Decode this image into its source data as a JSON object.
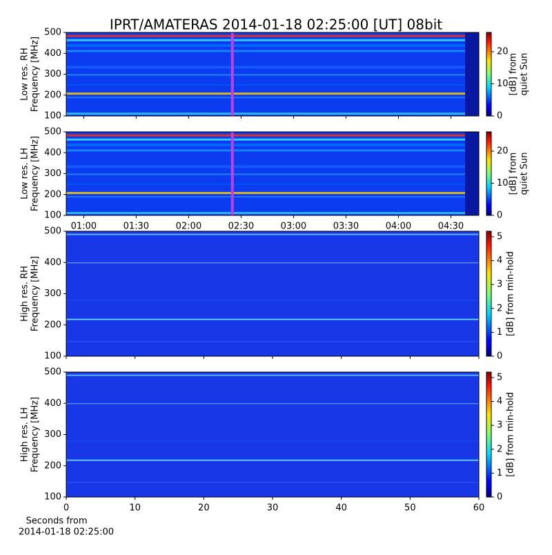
{
  "title": "IPRT/AMATERAS 2014-01-18 02:25:00 [UT]   08bit",
  "chart_data": [
    {
      "type": "heatmap",
      "ylabel": [
        "Low res. RH",
        "Frequency [MHz]"
      ],
      "ylim": [
        100,
        500
      ],
      "yticks": [
        100,
        200,
        300,
        400,
        500
      ],
      "xlim": [
        50,
        286
      ],
      "xticks": [
        {
          "value": 60,
          "label": "01:00"
        },
        {
          "value": 90,
          "label": "01:30"
        },
        {
          "value": 120,
          "label": "02:00"
        },
        {
          "value": 150,
          "label": "02:30"
        },
        {
          "value": 180,
          "label": "03:00"
        },
        {
          "value": 210,
          "label": "03:30"
        },
        {
          "value": 240,
          "label": "04:00"
        },
        {
          "value": 270,
          "label": "04:30"
        }
      ],
      "show_xtick_labels": false,
      "marker_x": 145,
      "marker_color": "#c040e0",
      "colorbar_label": [
        "[dB] from",
        "quiet Sun"
      ],
      "clim": [
        0,
        26
      ],
      "cticks": [
        0,
        10,
        20
      ]
    },
    {
      "type": "heatmap",
      "ylabel": [
        "Low res. LH",
        "Frequency [MHz]"
      ],
      "ylim": [
        100,
        500
      ],
      "yticks": [
        100,
        200,
        300,
        400,
        500
      ],
      "xlim": [
        50,
        286
      ],
      "xticks": [
        {
          "value": 60,
          "label": "01:00"
        },
        {
          "value": 90,
          "label": "01:30"
        },
        {
          "value": 120,
          "label": "02:00"
        },
        {
          "value": 150,
          "label": "02:30"
        },
        {
          "value": 180,
          "label": "03:00"
        },
        {
          "value": 210,
          "label": "03:30"
        },
        {
          "value": 240,
          "label": "04:00"
        },
        {
          "value": 270,
          "label": "04:30"
        }
      ],
      "show_xtick_labels": true,
      "marker_x": 145,
      "marker_color": "#c040e0",
      "colorbar_label": [
        "[dB] from",
        "quiet Sun"
      ],
      "clim": [
        0,
        26
      ],
      "cticks": [
        0,
        10,
        20
      ]
    },
    {
      "type": "heatmap",
      "ylabel": [
        "High res. RH",
        "Frequency [MHz]"
      ],
      "ylim": [
        100,
        500
      ],
      "yticks": [
        100,
        200,
        300,
        400,
        500
      ],
      "xlim": [
        0,
        60
      ],
      "xticks": [
        0,
        10,
        20,
        30,
        40,
        50,
        60
      ],
      "show_xtick_labels": false,
      "colorbar_label": [
        "[dB] from min-hold"
      ],
      "clim": [
        0,
        5.23
      ],
      "cticks": [
        0,
        1,
        2,
        3,
        4,
        5
      ]
    },
    {
      "type": "heatmap",
      "ylabel": [
        "High res. LH",
        "Frequency [MHz]"
      ],
      "ylim": [
        100,
        500
      ],
      "yticks": [
        100,
        200,
        300,
        400,
        500
      ],
      "xlim": [
        0,
        60
      ],
      "xticks": [
        0,
        10,
        20,
        30,
        40,
        50,
        60
      ],
      "show_xtick_labels": true,
      "xlabel": [
        "Seconds from",
        "2014-01-18 02:25:00"
      ],
      "colorbar_label": [
        "[dB] from min-hold"
      ],
      "clim": [
        0,
        5.23
      ],
      "cticks": [
        0,
        1,
        2,
        3,
        4,
        5
      ]
    }
  ]
}
